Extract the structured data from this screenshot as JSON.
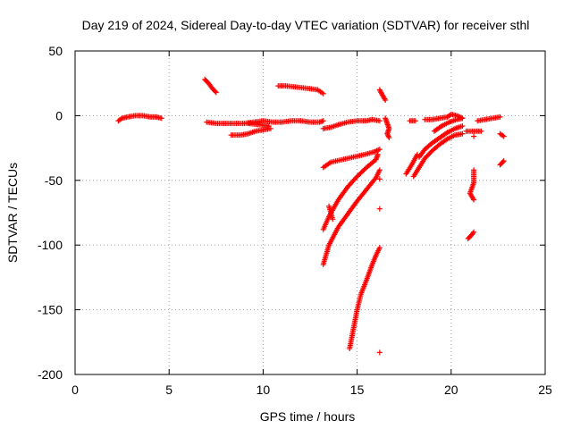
{
  "chart_data": {
    "type": "scatter",
    "title": "Day 219 of 2024, Sidereal Day-to-day VTEC variation (SDTVAR) for receiver sthl",
    "xlabel": "GPS time / hours",
    "ylabel": "SDTVAR / TECUs",
    "xlim": [
      0,
      25
    ],
    "ylim": [
      -200,
      50
    ],
    "xticks": [
      "0",
      "5",
      "10",
      "15",
      "20",
      "25"
    ],
    "yticks": [
      "50",
      "0",
      "-50",
      "-100",
      "-150",
      "-200"
    ],
    "grid": true,
    "marker": "plus",
    "color": "#ff0000",
    "tracks": [
      [
        [
          2.3,
          -4
        ],
        [
          2.5,
          -2
        ],
        [
          2.8,
          -1
        ],
        [
          3.2,
          0
        ],
        [
          3.6,
          0
        ],
        [
          4.0,
          -1
        ],
        [
          4.3,
          -1
        ],
        [
          4.6,
          -2
        ]
      ],
      [
        [
          6.9,
          28
        ],
        [
          7.1,
          25
        ],
        [
          7.3,
          21
        ],
        [
          7.5,
          18
        ]
      ],
      [
        [
          7.0,
          -5
        ],
        [
          7.5,
          -6
        ],
        [
          8.0,
          -6
        ],
        [
          8.5,
          -6
        ],
        [
          9.0,
          -6
        ],
        [
          9.5,
          -5
        ],
        [
          10.0,
          -4
        ],
        [
          10.5,
          -5
        ],
        [
          11.0,
          -5
        ],
        [
          11.5,
          -4
        ],
        [
          12.0,
          -4
        ],
        [
          12.5,
          -5
        ],
        [
          13.0,
          -5
        ],
        [
          13.2,
          -4
        ]
      ],
      [
        [
          8.3,
          -15
        ],
        [
          8.8,
          -15
        ],
        [
          9.2,
          -14
        ],
        [
          9.6,
          -12
        ],
        [
          10.0,
          -11
        ],
        [
          10.4,
          -10
        ]
      ],
      [
        [
          9.2,
          -6
        ],
        [
          9.8,
          -7
        ],
        [
          10.3,
          -8
        ]
      ],
      [
        [
          10.8,
          23
        ],
        [
          11.2,
          23
        ],
        [
          11.8,
          22
        ],
        [
          12.4,
          21
        ],
        [
          12.9,
          20
        ],
        [
          13.2,
          17
        ]
      ],
      [
        [
          13.2,
          -10
        ],
        [
          13.6,
          -9
        ],
        [
          14.0,
          -7
        ],
        [
          14.5,
          -5
        ],
        [
          15.0,
          -4
        ],
        [
          15.5,
          -4
        ],
        [
          15.8,
          -3
        ],
        [
          16.2,
          -4
        ]
      ],
      [
        [
          13.2,
          -40
        ],
        [
          13.6,
          -36
        ],
        [
          14.2,
          -34
        ],
        [
          14.8,
          -32
        ],
        [
          15.4,
          -30
        ],
        [
          15.9,
          -28
        ],
        [
          16.2,
          -26
        ]
      ],
      [
        [
          13.2,
          -88
        ],
        [
          13.5,
          -78
        ],
        [
          14.0,
          -65
        ],
        [
          14.5,
          -55
        ],
        [
          15.0,
          -47
        ],
        [
          15.5,
          -40
        ],
        [
          16.0,
          -34
        ],
        [
          16.1,
          -30
        ]
      ],
      [
        [
          13.2,
          -115
        ],
        [
          13.5,
          -100
        ],
        [
          14.0,
          -86
        ],
        [
          14.6,
          -74
        ],
        [
          15.0,
          -66
        ],
        [
          15.5,
          -57
        ],
        [
          16.0,
          -48
        ],
        [
          16.2,
          -42
        ]
      ],
      [
        [
          13.5,
          -70
        ],
        [
          13.6,
          -75
        ],
        [
          13.7,
          -80
        ]
      ],
      [
        [
          14.6,
          -180
        ],
        [
          14.8,
          -165
        ],
        [
          15.0,
          -150
        ],
        [
          15.2,
          -138
        ],
        [
          15.5,
          -127
        ],
        [
          15.8,
          -115
        ],
        [
          16.0,
          -108
        ],
        [
          16.2,
          -102
        ]
      ],
      [
        [
          16.2,
          20
        ],
        [
          16.3,
          17
        ],
        [
          16.5,
          12
        ]
      ],
      [
        [
          16.2,
          -49
        ]
      ],
      [
        [
          16.2,
          -72
        ]
      ],
      [
        [
          16.2,
          -183
        ]
      ],
      [
        [
          16.5,
          -2
        ],
        [
          16.6,
          -6
        ],
        [
          16.7,
          -10
        ],
        [
          16.6,
          -14
        ],
        [
          16.7,
          -17
        ]
      ],
      [
        [
          17.8,
          -4
        ],
        [
          18.1,
          -4
        ]
      ],
      [
        [
          17.6,
          -45
        ],
        [
          17.9,
          -38
        ],
        [
          18.2,
          -30
        ]
      ],
      [
        [
          18.0,
          -47
        ],
        [
          18.3,
          -40
        ],
        [
          18.6,
          -33
        ],
        [
          19.0,
          -27
        ],
        [
          19.4,
          -22
        ],
        [
          19.8,
          -18
        ],
        [
          20.2,
          -15
        ],
        [
          20.6,
          -14
        ]
      ],
      [
        [
          18.3,
          -32
        ],
        [
          18.6,
          -26
        ],
        [
          19.0,
          -21
        ],
        [
          19.4,
          -17
        ],
        [
          19.8,
          -13
        ],
        [
          20.2,
          -10
        ],
        [
          20.6,
          -8
        ]
      ],
      [
        [
          19.1,
          -12
        ],
        [
          19.5,
          -8
        ],
        [
          19.9,
          -5
        ],
        [
          20.3,
          -3
        ],
        [
          20.6,
          -2
        ]
      ],
      [
        [
          18.6,
          -3
        ],
        [
          19.0,
          -3
        ],
        [
          19.4,
          -2
        ],
        [
          19.8,
          -1
        ],
        [
          20.0,
          1
        ],
        [
          20.3,
          0
        ],
        [
          20.6,
          -2
        ]
      ],
      [
        [
          20.8,
          -12
        ],
        [
          21.3,
          -12
        ],
        [
          21.6,
          -12
        ]
      ],
      [
        [
          21.2,
          -42
        ],
        [
          21.2,
          -52
        ],
        [
          21.0,
          -60
        ],
        [
          21.2,
          -65
        ]
      ],
      [
        [
          20.9,
          -95
        ],
        [
          21.1,
          -92
        ],
        [
          21.2,
          -90
        ]
      ],
      [
        [
          21.2,
          -16
        ]
      ],
      [
        [
          21.4,
          -4
        ],
        [
          21.8,
          -3
        ],
        [
          22.2,
          -2
        ],
        [
          22.6,
          -1
        ]
      ],
      [
        [
          22.6,
          -14
        ],
        [
          22.8,
          -16
        ]
      ],
      [
        [
          22.6,
          -38
        ],
        [
          22.8,
          -35
        ]
      ]
    ]
  }
}
